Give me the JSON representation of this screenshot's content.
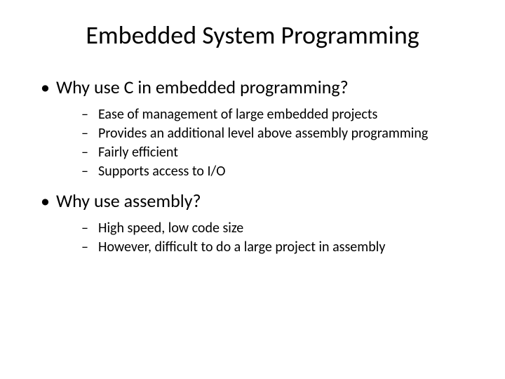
{
  "slide": {
    "title": "Embedded System Programming",
    "bullets": [
      {
        "text": "Why use C in embedded programming?",
        "sub": [
          "Ease of management of large embedded projects",
          "Provides an additional level above assembly programming",
          "Fairly efficient",
          "Supports access to I/O"
        ]
      },
      {
        "text": "Why use assembly?",
        "sub": [
          "High speed, low code size",
          "However, difficult to do a large project in assembly"
        ]
      }
    ]
  },
  "style": {
    "background_color": "#ffffff",
    "text_color": "#000000",
    "title_fontsize": 36,
    "level1_fontsize": 26,
    "level2_fontsize": 20,
    "font_family": "Calibri, Arial, sans-serif"
  }
}
